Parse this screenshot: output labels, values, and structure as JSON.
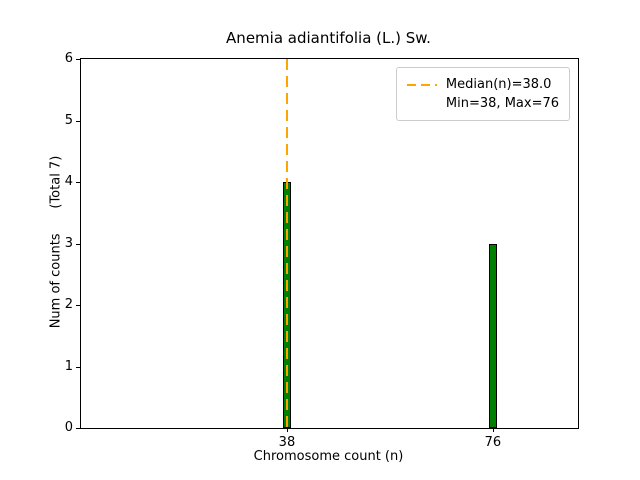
{
  "chart_data": {
    "type": "bar",
    "title": "Anemia adiantifolia (L.) Sw.",
    "xlabel": "Chromosome count (n)",
    "ylabel": "Num of counts      (Total 7)",
    "total_counts": 7,
    "x": [
      38,
      76
    ],
    "values": [
      4,
      3
    ],
    "xticks": [
      38,
      76
    ],
    "yticks": [
      0,
      1,
      2,
      3,
      4,
      5,
      6
    ],
    "xlim": [
      0,
      91.7
    ],
    "ylim": [
      0,
      6
    ],
    "median_n": 38.0,
    "min_n": 38,
    "max_n": 76,
    "bar_color": "#008000",
    "bar_edge_color": "#000000",
    "median_line_color": "#ffa500",
    "legend": {
      "position": "upper right",
      "labels": [
        "Median(n)=38.0",
        "Min=38, Max=76"
      ]
    }
  }
}
